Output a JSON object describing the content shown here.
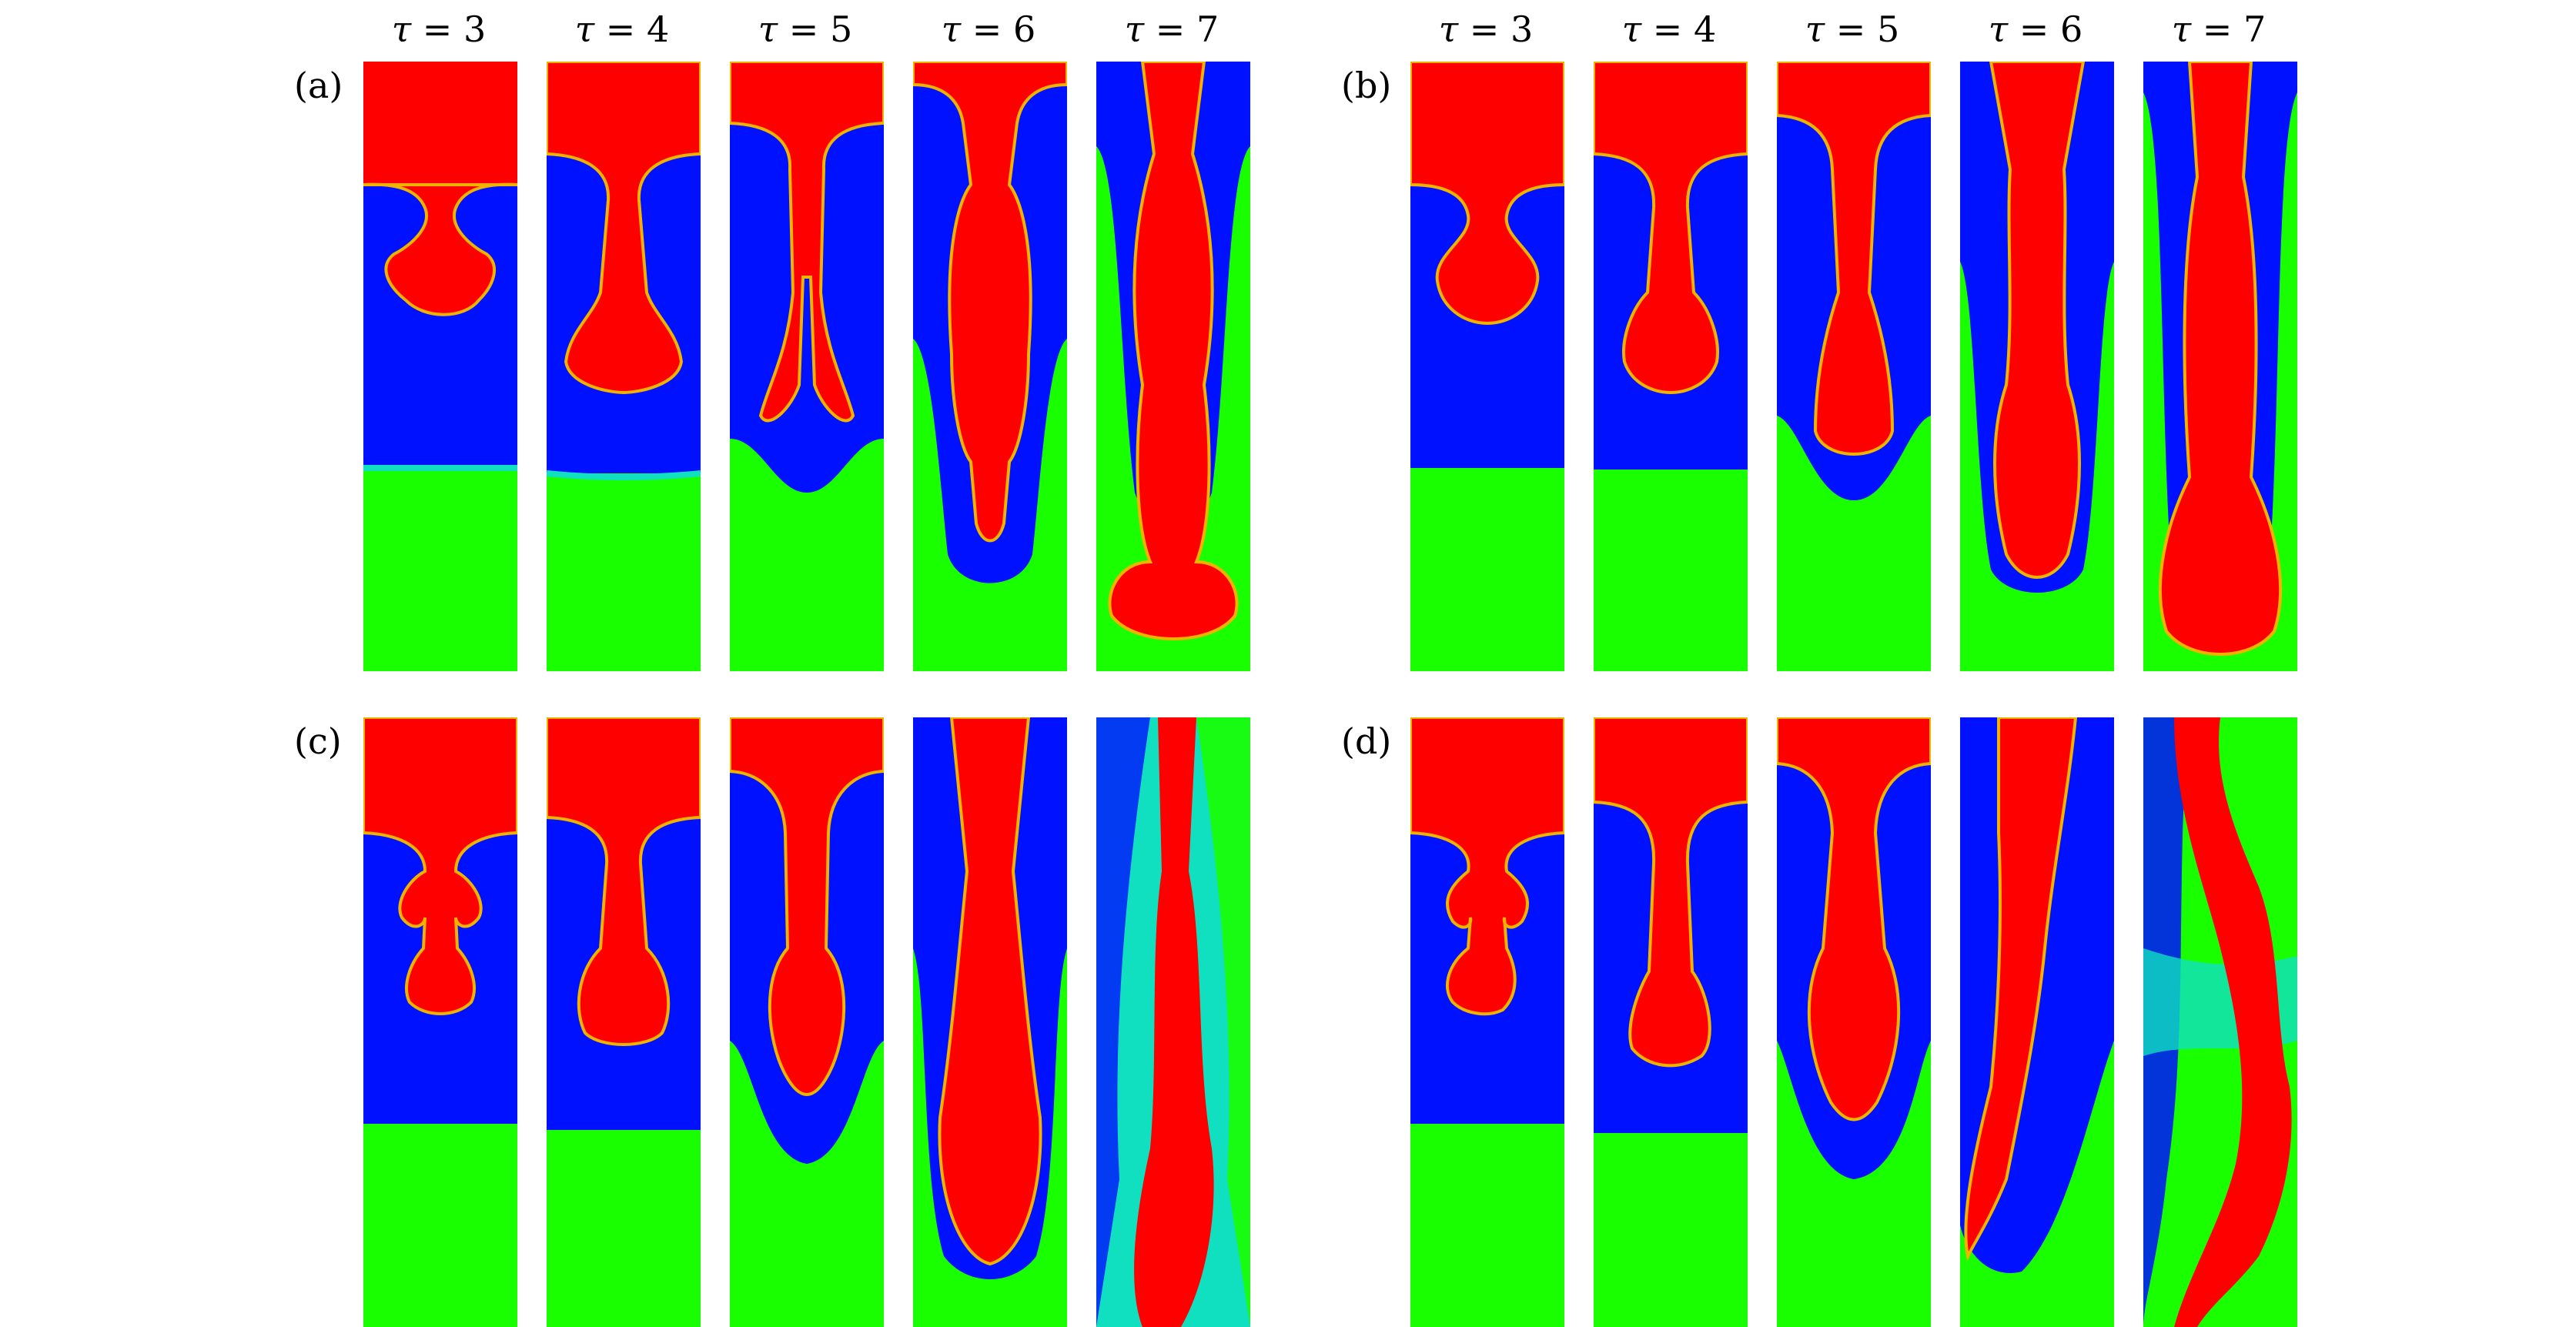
{
  "column_labels": [
    {
      "sym": "τ",
      "eq": " = 3"
    },
    {
      "sym": "τ",
      "eq": " = 4"
    },
    {
      "sym": "τ",
      "eq": " = 5"
    },
    {
      "sym": "τ",
      "eq": " = 6"
    },
    {
      "sym": "τ",
      "eq": " = 7"
    }
  ],
  "panels": [
    {
      "label": "(a)"
    },
    {
      "label": "(b)"
    },
    {
      "label": "(c)"
    },
    {
      "label": "(d)"
    }
  ],
  "colors": {
    "upper_fluid": "#ff0000",
    "middle_fluid": "#0011ff",
    "lower_fluid": "#1aff00",
    "interface": "#f2b200",
    "mixing": "#10e0c0"
  }
}
